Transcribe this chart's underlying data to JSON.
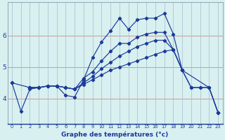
{
  "xlabel": "Graphe des températures (°c)",
  "background_color": "#d8f0f0",
  "line_color": "#1a3a9a",
  "grid_color_h": "#cc9999",
  "grid_color_v": "#aabbcc",
  "xlim": [
    -0.5,
    23.5
  ],
  "ylim": [
    3.2,
    7.05
  ],
  "yticks": [
    4,
    5,
    6
  ],
  "xticks": [
    0,
    1,
    2,
    3,
    4,
    5,
    6,
    7,
    8,
    9,
    10,
    11,
    12,
    13,
    14,
    15,
    16,
    17,
    18,
    19,
    20,
    21,
    22,
    23
  ],
  "series": [
    {
      "x": [
        0,
        1,
        2,
        3,
        4,
        5,
        6,
        7,
        8,
        9,
        10,
        11,
        12,
        13,
        14,
        15,
        16,
        17,
        18,
        19,
        20,
        21,
        22,
        23
      ],
      "y": [
        4.5,
        3.6,
        4.3,
        4.35,
        4.4,
        4.4,
        4.1,
        4.05,
        4.6,
        5.3,
        5.8,
        6.15,
        6.55,
        6.2,
        6.5,
        6.55,
        6.55,
        6.7,
        6.05,
        4.9,
        null,
        null,
        null,
        null
      ]
    },
    {
      "x": [
        2,
        3,
        4,
        5,
        6,
        7,
        8,
        9,
        10,
        11,
        12,
        13,
        14,
        15,
        16,
        17,
        18,
        19,
        22,
        23
      ],
      "y": [
        4.35,
        4.35,
        4.4,
        4.4,
        4.35,
        4.3,
        4.65,
        4.85,
        5.2,
        5.5,
        5.75,
        5.75,
        5.95,
        6.05,
        6.1,
        6.1,
        5.55,
        4.9,
        4.35,
        3.55
      ]
    },
    {
      "x": [
        2,
        3,
        4,
        5,
        6,
        7,
        8,
        9,
        10,
        11,
        12,
        13,
        14,
        15,
        16,
        17,
        18,
        19,
        20,
        21,
        22,
        23
      ],
      "y": [
        4.35,
        4.35,
        4.4,
        4.4,
        4.35,
        4.3,
        4.5,
        4.7,
        4.95,
        5.15,
        5.35,
        5.5,
        5.65,
        5.75,
        5.85,
        5.85,
        5.55,
        4.9,
        4.35,
        4.35,
        4.35,
        3.55
      ]
    },
    {
      "x": [
        0,
        2,
        3,
        4,
        5,
        6,
        7,
        8,
        9,
        10,
        11,
        12,
        13,
        14,
        15,
        16,
        17,
        18,
        19,
        20,
        21,
        22,
        23
      ],
      "y": [
        4.5,
        4.35,
        4.35,
        4.4,
        4.4,
        4.35,
        4.3,
        4.45,
        4.6,
        4.75,
        4.9,
        5.0,
        5.1,
        5.2,
        5.3,
        5.4,
        5.5,
        5.55,
        4.9,
        4.35,
        4.35,
        4.35,
        3.55
      ]
    }
  ]
}
